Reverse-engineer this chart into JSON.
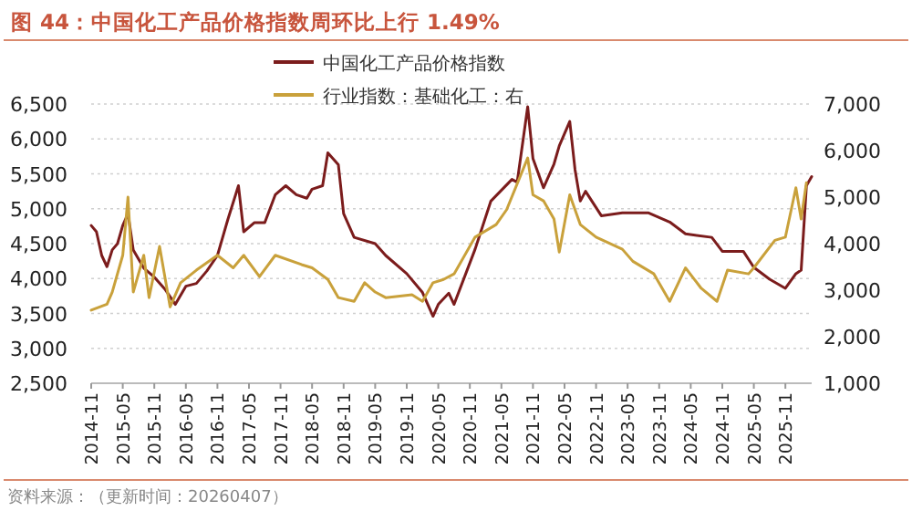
{
  "chart_data": {
    "type": "line",
    "title": "图 44：中国化工产品价格指数周环比上行 1.49%",
    "annotations": [
      "资料来源：（更新时间：20260407）"
    ],
    "xlim": [
      "2014-11",
      "2026-04"
    ],
    "xticks": [
      "2014-11",
      "2015-05",
      "2015-11",
      "2016-05",
      "2016-11",
      "2017-05",
      "2017-11",
      "2018-05",
      "2018-11",
      "2019-05",
      "2019-11",
      "2020-05",
      "2020-11",
      "2021-05",
      "2021-11",
      "2022-05",
      "2022-11",
      "2023-05",
      "2023-11",
      "2024-05",
      "2024-11",
      "2025-05",
      "2025-11"
    ],
    "ylim": [
      2500,
      6500
    ],
    "yticks": [
      {
        "value": 2500,
        "label": "2,500"
      },
      {
        "value": 3000,
        "label": "3,000"
      },
      {
        "value": 3500,
        "label": "3,500"
      },
      {
        "value": 4000,
        "label": "4,000"
      },
      {
        "value": 4500,
        "label": "4,500"
      },
      {
        "value": 5000,
        "label": "5,000"
      },
      {
        "value": 5500,
        "label": "5,500"
      },
      {
        "value": 6000,
        "label": "6,000"
      },
      {
        "value": 6500,
        "label": "6,500"
      }
    ],
    "y2lim": [
      1000,
      7000
    ],
    "y2ticks": [
      {
        "value": 1000,
        "label": "1,000"
      },
      {
        "value": 2000,
        "label": "2,000"
      },
      {
        "value": 3000,
        "label": "3,000"
      },
      {
        "value": 4000,
        "label": "4,000"
      },
      {
        "value": 5000,
        "label": "5,000"
      },
      {
        "value": 6000,
        "label": "6,000"
      },
      {
        "value": 7000,
        "label": "7,000"
      }
    ],
    "grid": "y",
    "legend": "top",
    "series": [
      {
        "name": "中国化工产品价格指数",
        "color": "#7b1c1c",
        "x": [
          "2014-11",
          "2014-12",
          "2015-01",
          "2015-02",
          "2015-03",
          "2015-04",
          "2015-05",
          "2015-06",
          "2015-07",
          "2015-09",
          "2015-11",
          "2016-01",
          "2016-03",
          "2016-05",
          "2016-07",
          "2016-09",
          "2016-11",
          "2017-01",
          "2017-03",
          "2017-04",
          "2017-06",
          "2017-08",
          "2017-10",
          "2017-12",
          "2018-02",
          "2018-04",
          "2018-05",
          "2018-07",
          "2018-08",
          "2018-10",
          "2018-11",
          "2019-01",
          "2019-05",
          "2019-07",
          "2019-11",
          "2020-02",
          "2020-04",
          "2020-05",
          "2020-07",
          "2020-08",
          "2020-12",
          "2021-03",
          "2021-07",
          "2021-08",
          "2021-10",
          "2021-11",
          "2022-01",
          "2022-03",
          "2022-04",
          "2022-06",
          "2022-07",
          "2022-08",
          "2022-09",
          "2022-12",
          "2023-04",
          "2023-09",
          "2024-01",
          "2024-04",
          "2024-09",
          "2024-11",
          "2025-03",
          "2025-05",
          "2025-08",
          "2025-11",
          "2026-01",
          "2026-02",
          "2026-03",
          "2026-04"
        ],
        "values": [
          4760,
          4670,
          4330,
          4170,
          4410,
          4500,
          4760,
          4930,
          4410,
          4150,
          4020,
          3850,
          3630,
          3890,
          3930,
          4110,
          4330,
          4850,
          5330,
          4670,
          4800,
          4800,
          5200,
          5330,
          5200,
          5150,
          5280,
          5330,
          5800,
          5630,
          4930,
          4590,
          4500,
          4330,
          4070,
          3800,
          3460,
          3630,
          3790,
          3630,
          4420,
          5110,
          5420,
          5380,
          6460,
          5720,
          5300,
          5640,
          5900,
          6250,
          5560,
          5110,
          5250,
          4900,
          4940,
          4940,
          4810,
          4640,
          4590,
          4390,
          4390,
          4160,
          3990,
          3860,
          4070,
          4120,
          5330,
          5460
        ]
      },
      {
        "name": "行业指数：基础化工：右",
        "color": "#c9a13b",
        "axis": "y2",
        "x": [
          "2014-11",
          "2015-02",
          "2015-03",
          "2015-05",
          "2015-06",
          "2015-07",
          "2015-09",
          "2015-10",
          "2015-12",
          "2016-02",
          "2016-04",
          "2016-07",
          "2016-11",
          "2017-02",
          "2017-04",
          "2017-07",
          "2017-10",
          "2018-03",
          "2018-05",
          "2018-08",
          "2018-10",
          "2019-01",
          "2019-03",
          "2019-05",
          "2019-07",
          "2019-12",
          "2020-02",
          "2020-04",
          "2020-06",
          "2020-08",
          "2020-12",
          "2021-04",
          "2021-06",
          "2021-10",
          "2021-11",
          "2022-01",
          "2022-03",
          "2022-04",
          "2022-06",
          "2022-08",
          "2022-11",
          "2023-04",
          "2023-06",
          "2023-10",
          "2024-01",
          "2024-04",
          "2024-07",
          "2024-10",
          "2024-12",
          "2025-04",
          "2025-05",
          "2025-09",
          "2025-11",
          "2026-01",
          "2026-02",
          "2026-03"
        ],
        "values": [
          2570,
          2700,
          2960,
          3750,
          5000,
          2960,
          3750,
          2840,
          3940,
          2640,
          3160,
          3430,
          3750,
          3480,
          3750,
          3290,
          3750,
          3550,
          3480,
          3230,
          2840,
          2760,
          3160,
          2960,
          2840,
          2900,
          2760,
          3160,
          3230,
          3350,
          4140,
          4410,
          4730,
          5840,
          5050,
          4920,
          4530,
          3820,
          5050,
          4410,
          4140,
          3880,
          3620,
          3350,
          2760,
          3480,
          3040,
          2760,
          3430,
          3350,
          3480,
          4070,
          4140,
          5200,
          4530,
          5310
        ]
      }
    ]
  }
}
